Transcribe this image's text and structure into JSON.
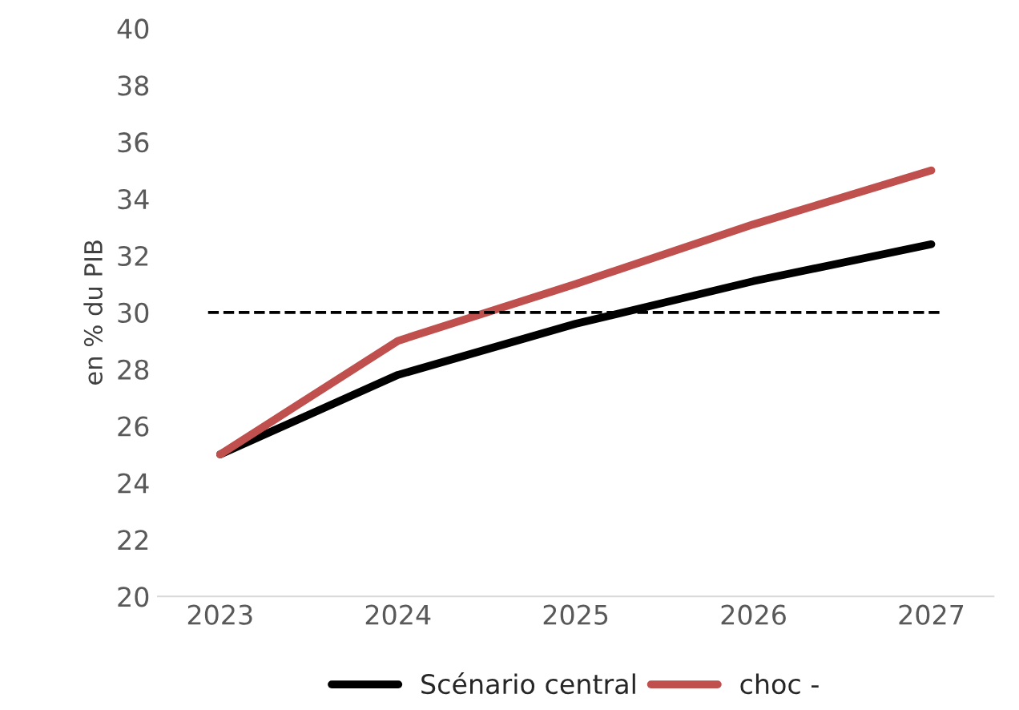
{
  "chart_data": {
    "type": "line",
    "ylabel": "en % du PIB",
    "categories": [
      "2023",
      "2024",
      "2025",
      "2026",
      "2027"
    ],
    "series": [
      {
        "name": "Scénario central",
        "color": "#000000",
        "values": [
          25.0,
          27.8,
          29.6,
          31.1,
          32.4
        ]
      },
      {
        "name": "choc -",
        "color": "#c0504d",
        "values": [
          25.0,
          29.0,
          31.0,
          33.1,
          35.0
        ]
      }
    ],
    "ylim": [
      20,
      40
    ],
    "yticks": [
      20,
      22,
      24,
      26,
      28,
      30,
      32,
      34,
      36,
      38,
      40
    ],
    "ref_lines": [
      {
        "axis": "y",
        "value": 30,
        "color": "#000000",
        "line_style": "dashed"
      }
    ],
    "grid": false,
    "legend": "bottom",
    "marker": "none",
    "line_style": "solid"
  }
}
